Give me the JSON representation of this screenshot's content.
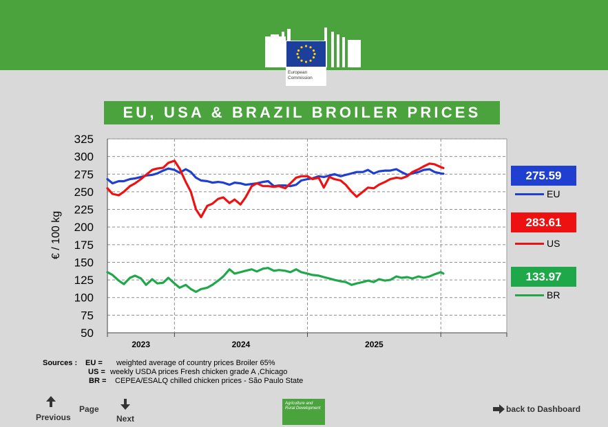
{
  "title": "EU, USA & BRAZIL BROILER PRICES",
  "logo": {
    "text_line1": "European",
    "text_line2": "Commission"
  },
  "chart_data": {
    "type": "line",
    "title": "EU, USA & BRAZIL BROILER PRICES",
    "ylabel": "€ / 100 kg",
    "xlabel": "",
    "ylim": [
      50,
      325
    ],
    "yticks": [
      50,
      75,
      100,
      125,
      150,
      175,
      200,
      225,
      250,
      275,
      300,
      325
    ],
    "xlim": [
      "2022-07-01",
      "2025-07-01"
    ],
    "xticks": [
      "2023",
      "2024",
      "2025"
    ],
    "grid": true,
    "series": [
      {
        "name": "EU",
        "color": "#1f3fd0",
        "latest": "275.59",
        "points": [
          [
            "2022-07-01",
            268
          ],
          [
            "2022-07-15",
            262
          ],
          [
            "2022-08-01",
            265
          ],
          [
            "2022-08-15",
            265
          ],
          [
            "2022-09-01",
            268
          ],
          [
            "2022-09-15",
            269
          ],
          [
            "2022-10-01",
            271
          ],
          [
            "2022-10-15",
            273
          ],
          [
            "2022-11-01",
            274
          ],
          [
            "2022-11-15",
            276
          ],
          [
            "2022-12-01",
            280
          ],
          [
            "2022-12-15",
            283
          ],
          [
            "2023-01-01",
            281
          ],
          [
            "2023-01-15",
            277
          ],
          [
            "2023-02-01",
            282
          ],
          [
            "2023-02-15",
            278
          ],
          [
            "2023-03-01",
            270
          ],
          [
            "2023-03-15",
            266
          ],
          [
            "2023-04-01",
            265
          ],
          [
            "2023-04-15",
            263
          ],
          [
            "2023-05-01",
            264
          ],
          [
            "2023-05-15",
            263
          ],
          [
            "2023-06-01",
            260
          ],
          [
            "2023-06-15",
            263
          ],
          [
            "2023-07-01",
            262
          ],
          [
            "2023-07-15",
            260
          ],
          [
            "2023-08-01",
            261
          ],
          [
            "2023-08-15",
            262
          ],
          [
            "2023-09-01",
            264
          ],
          [
            "2023-09-15",
            265
          ],
          [
            "2023-10-01",
            258
          ],
          [
            "2023-10-15",
            259
          ],
          [
            "2023-11-01",
            259
          ],
          [
            "2023-11-15",
            258
          ],
          [
            "2023-12-01",
            260
          ],
          [
            "2023-12-15",
            266
          ],
          [
            "2024-01-01",
            268
          ],
          [
            "2024-01-15",
            269
          ],
          [
            "2024-02-01",
            272
          ],
          [
            "2024-02-15",
            271
          ],
          [
            "2024-03-01",
            273
          ],
          [
            "2024-03-15",
            275
          ],
          [
            "2024-04-01",
            272
          ],
          [
            "2024-04-15",
            274
          ],
          [
            "2024-05-01",
            276
          ],
          [
            "2024-05-15",
            278
          ],
          [
            "2024-06-01",
            278
          ],
          [
            "2024-06-15",
            281
          ],
          [
            "2024-07-01",
            276
          ],
          [
            "2024-07-15",
            279
          ],
          [
            "2024-08-01",
            280
          ],
          [
            "2024-08-15",
            280
          ],
          [
            "2024-09-01",
            282
          ],
          [
            "2024-09-15",
            278
          ],
          [
            "2024-10-01",
            274
          ],
          [
            "2024-10-15",
            276
          ],
          [
            "2024-11-01",
            278
          ],
          [
            "2024-11-15",
            281
          ],
          [
            "2024-12-01",
            282
          ],
          [
            "2024-12-15",
            278
          ],
          [
            "2025-01-01",
            276
          ],
          [
            "2025-01-08",
            275.59
          ]
        ]
      },
      {
        "name": "US",
        "color": "#ee1111",
        "latest": "283.61",
        "points": [
          [
            "2022-07-01",
            255
          ],
          [
            "2022-07-15",
            247
          ],
          [
            "2022-08-01",
            245
          ],
          [
            "2022-08-15",
            250
          ],
          [
            "2022-09-01",
            258
          ],
          [
            "2022-09-15",
            262
          ],
          [
            "2022-10-01",
            268
          ],
          [
            "2022-10-15",
            274
          ],
          [
            "2022-11-01",
            281
          ],
          [
            "2022-11-15",
            283
          ],
          [
            "2022-12-01",
            284
          ],
          [
            "2022-12-15",
            291
          ],
          [
            "2023-01-01",
            294
          ],
          [
            "2023-01-15",
            283
          ],
          [
            "2023-02-01",
            264
          ],
          [
            "2023-02-15",
            250
          ],
          [
            "2023-03-01",
            225
          ],
          [
            "2023-03-15",
            214
          ],
          [
            "2023-04-01",
            230
          ],
          [
            "2023-04-15",
            233
          ],
          [
            "2023-05-01",
            240
          ],
          [
            "2023-05-15",
            242
          ],
          [
            "2023-06-01",
            234
          ],
          [
            "2023-06-15",
            239
          ],
          [
            "2023-07-01",
            232
          ],
          [
            "2023-07-15",
            242
          ],
          [
            "2023-08-01",
            258
          ],
          [
            "2023-08-15",
            262
          ],
          [
            "2023-09-01",
            258
          ],
          [
            "2023-09-15",
            258
          ],
          [
            "2023-10-01",
            257
          ],
          [
            "2023-10-15",
            258
          ],
          [
            "2023-11-01",
            255
          ],
          [
            "2023-11-15",
            262
          ],
          [
            "2023-12-01",
            270
          ],
          [
            "2023-12-15",
            272
          ],
          [
            "2024-01-01",
            272
          ],
          [
            "2024-01-15",
            268
          ],
          [
            "2024-02-01",
            270
          ],
          [
            "2024-02-15",
            256
          ],
          [
            "2024-03-01",
            271
          ],
          [
            "2024-03-15",
            268
          ],
          [
            "2024-04-01",
            266
          ],
          [
            "2024-04-15",
            260
          ],
          [
            "2024-05-01",
            250
          ],
          [
            "2024-05-15",
            243
          ],
          [
            "2024-06-01",
            250
          ],
          [
            "2024-06-15",
            256
          ],
          [
            "2024-07-01",
            255
          ],
          [
            "2024-07-15",
            260
          ],
          [
            "2024-08-01",
            264
          ],
          [
            "2024-08-15",
            268
          ],
          [
            "2024-09-01",
            270
          ],
          [
            "2024-09-15",
            269
          ],
          [
            "2024-10-01",
            272
          ],
          [
            "2024-10-15",
            278
          ],
          [
            "2024-11-01",
            282
          ],
          [
            "2024-11-15",
            286
          ],
          [
            "2024-12-01",
            290
          ],
          [
            "2024-12-15",
            289
          ],
          [
            "2025-01-01",
            285
          ],
          [
            "2025-01-08",
            283.61
          ]
        ]
      },
      {
        "name": "BR",
        "color": "#1fa84a",
        "latest": "133.97",
        "points": [
          [
            "2022-07-01",
            136
          ],
          [
            "2022-07-15",
            132
          ],
          [
            "2022-08-01",
            124
          ],
          [
            "2022-08-15",
            119
          ],
          [
            "2022-09-01",
            128
          ],
          [
            "2022-09-15",
            131
          ],
          [
            "2022-10-01",
            127
          ],
          [
            "2022-10-15",
            118
          ],
          [
            "2022-11-01",
            126
          ],
          [
            "2022-11-15",
            120
          ],
          [
            "2022-12-01",
            121
          ],
          [
            "2022-12-15",
            128
          ],
          [
            "2023-01-01",
            120
          ],
          [
            "2023-01-15",
            114
          ],
          [
            "2023-02-01",
            118
          ],
          [
            "2023-02-15",
            112
          ],
          [
            "2023-03-01",
            108
          ],
          [
            "2023-03-15",
            112
          ],
          [
            "2023-04-01",
            114
          ],
          [
            "2023-04-15",
            118
          ],
          [
            "2023-05-01",
            124
          ],
          [
            "2023-05-15",
            130
          ],
          [
            "2023-06-01",
            140
          ],
          [
            "2023-06-15",
            134
          ],
          [
            "2023-07-01",
            136
          ],
          [
            "2023-07-15",
            138
          ],
          [
            "2023-08-01",
            140
          ],
          [
            "2023-08-15",
            137
          ],
          [
            "2023-09-01",
            141
          ],
          [
            "2023-09-15",
            142
          ],
          [
            "2023-10-01",
            138
          ],
          [
            "2023-10-15",
            139
          ],
          [
            "2023-11-01",
            138
          ],
          [
            "2023-11-15",
            136
          ],
          [
            "2023-12-01",
            140
          ],
          [
            "2023-12-15",
            136
          ],
          [
            "2024-01-01",
            134
          ],
          [
            "2024-01-15",
            132
          ],
          [
            "2024-02-01",
            131
          ],
          [
            "2024-02-15",
            129
          ],
          [
            "2024-03-01",
            127
          ],
          [
            "2024-03-15",
            125
          ],
          [
            "2024-04-01",
            123
          ],
          [
            "2024-04-15",
            122
          ],
          [
            "2024-05-01",
            118
          ],
          [
            "2024-05-15",
            120
          ],
          [
            "2024-06-01",
            122
          ],
          [
            "2024-06-15",
            124
          ],
          [
            "2024-07-01",
            122
          ],
          [
            "2024-07-15",
            126
          ],
          [
            "2024-08-01",
            124
          ],
          [
            "2024-08-15",
            125
          ],
          [
            "2024-09-01",
            130
          ],
          [
            "2024-09-15",
            128
          ],
          [
            "2024-10-01",
            129
          ],
          [
            "2024-10-15",
            127
          ],
          [
            "2024-11-01",
            130
          ],
          [
            "2024-11-15",
            128
          ],
          [
            "2024-12-01",
            130
          ],
          [
            "2024-12-15",
            133
          ],
          [
            "2025-01-01",
            136
          ],
          [
            "2025-01-08",
            133.97
          ]
        ]
      }
    ]
  },
  "sources": {
    "label": "Sources :",
    "rows": [
      {
        "key": "EU =",
        "text": "weighted average of country prices    Broiler 65%"
      },
      {
        "key": "US =",
        "text": "weekly USDA prices    Fresh chicken grade A ,Chicago"
      },
      {
        "key": "BR =",
        "text": "CEPEA/ESALQ chilled chicken prices - São Paulo State"
      }
    ]
  },
  "nav": {
    "previous": "Previous",
    "page": "Page",
    "next": "Next",
    "back": "back to Dashboard"
  },
  "agri_logo": "Agriculture and Rural Development"
}
